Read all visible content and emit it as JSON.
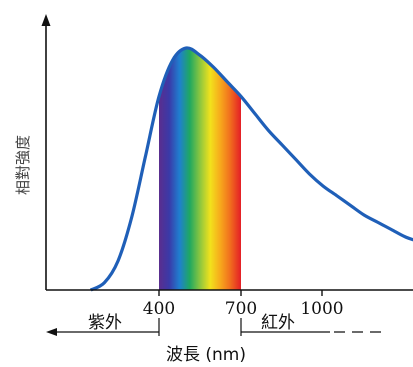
{
  "chart_data": {
    "type": "line",
    "title": "",
    "xlabel": "波長 (nm)",
    "ylabel": "相對強度",
    "x_ticks": [
      400,
      700,
      1000
    ],
    "xlim": [
      0,
      1500
    ],
    "ylim": [
      0,
      1.05
    ],
    "grid": false,
    "legend": "none",
    "series": [
      {
        "x": [
          150,
          200,
          250,
          300,
          350,
          400,
          450,
          500,
          550,
          600,
          650,
          700,
          750,
          800,
          850,
          900,
          950,
          1000,
          1050,
          1100,
          1150,
          1200,
          1250,
          1300,
          1350,
          1400,
          1450,
          1500
        ],
        "y": [
          0.0,
          0.03,
          0.12,
          0.3,
          0.55,
          0.8,
          0.95,
          1.0,
          0.97,
          0.92,
          0.86,
          0.8,
          0.73,
          0.66,
          0.6,
          0.54,
          0.48,
          0.43,
          0.39,
          0.35,
          0.31,
          0.28,
          0.25,
          0.22,
          0.2,
          0.18,
          0.16,
          0.14
        ]
      }
    ],
    "colors": {
      "curve": "#1f5fb8",
      "spectrum": [
        "#5b2d8e",
        "#3a3aa8",
        "#1f7fd0",
        "#1fa860",
        "#8cc63f",
        "#f2e21c",
        "#f7a81c",
        "#f06a1e",
        "#e41e26"
      ]
    },
    "region_labels": {
      "ultraviolet": "紫外",
      "infrared": "紅外"
    }
  }
}
